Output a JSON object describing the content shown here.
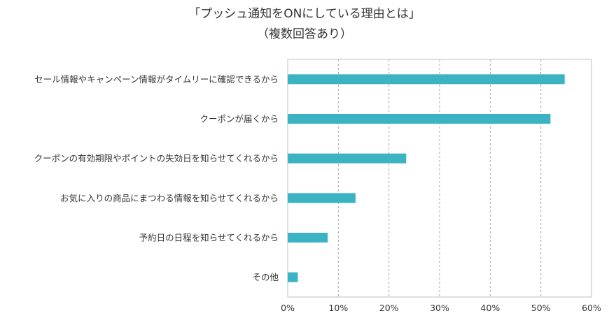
{
  "chart_data": {
    "type": "bar",
    "orientation": "horizontal",
    "title": "「プッシュ通知をONにしている理由とは」",
    "subtitle": "（複数回答あり）",
    "categories": [
      "セール情報やキャンペーン情報がタイムリーに確認できるから",
      "クーポンが届くから",
      "クーポンの有効期限やポイントの失効日を知らせてくれるから",
      "お気に入りの商品にまつわる情報を知らせてくれるから",
      "予約日の日程を知らせてくれるから",
      "その他"
    ],
    "series": [
      {
        "values": [
          54.7,
          51.9,
          23.4,
          13.4,
          7.9,
          2.0
        ]
      }
    ],
    "xlim": [
      0,
      60
    ],
    "x_ticks": [
      "0%",
      "10%",
      "20%",
      "30%",
      "40%",
      "50%",
      "60%"
    ],
    "grid": "vertical dashed",
    "legend": "none",
    "bar_color": "#3bb3c3"
  }
}
